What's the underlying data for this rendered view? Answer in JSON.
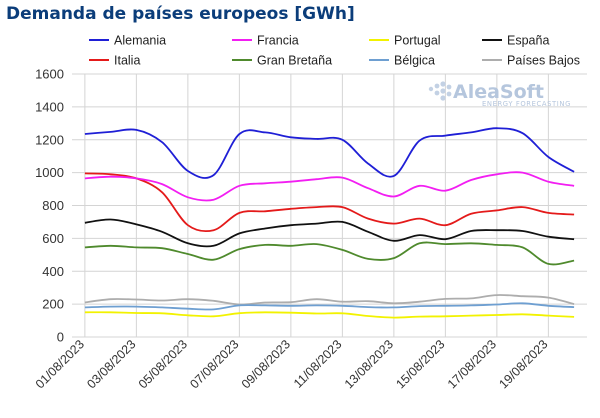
{
  "title": "Demanda de países europeos [GWh]",
  "logo": {
    "name": "AleaSoft",
    "tagline": "ENERGY FORECASTING"
  },
  "chart_data": {
    "type": "line",
    "title": "Demanda de países europeos [GWh]",
    "xlabel": "",
    "ylabel": "",
    "ylim": [
      0,
      1600
    ],
    "yticks": [
      0,
      200,
      400,
      600,
      800,
      1000,
      1200,
      1400,
      1600
    ],
    "grid": true,
    "legend_position": "top",
    "x": [
      "01/08/2023",
      "02/08/2023",
      "03/08/2023",
      "04/08/2023",
      "05/08/2023",
      "06/08/2023",
      "07/08/2023",
      "08/08/2023",
      "09/08/2023",
      "10/08/2023",
      "11/08/2023",
      "12/08/2023",
      "13/08/2023",
      "14/08/2023",
      "15/08/2023",
      "16/08/2023",
      "17/08/2023",
      "18/08/2023",
      "19/08/2023",
      "20/08/2023"
    ],
    "xtick_labels": [
      "01/08/2023",
      "03/08/2023",
      "05/08/2023",
      "07/08/2023",
      "09/08/2023",
      "11/08/2023",
      "13/08/2023",
      "15/08/2023",
      "17/08/2023",
      "19/08/2023"
    ],
    "series": [
      {
        "name": "Alemania",
        "color": "#1f1fd6",
        "values": [
          1235,
          1248,
          1260,
          1185,
          1010,
          985,
          1235,
          1245,
          1215,
          1205,
          1200,
          1055,
          980,
          1195,
          1225,
          1245,
          1270,
          1240,
          1095,
          1005
        ]
      },
      {
        "name": "Francia",
        "color": "#f21ef2",
        "values": [
          965,
          975,
          965,
          930,
          850,
          835,
          920,
          935,
          945,
          960,
          970,
          905,
          855,
          920,
          890,
          955,
          990,
          1000,
          945,
          920
        ]
      },
      {
        "name": "Portugal",
        "color": "#f2f200",
        "values": [
          150,
          150,
          146,
          144,
          132,
          126,
          145,
          150,
          148,
          143,
          144,
          128,
          118,
          124,
          126,
          130,
          134,
          138,
          130,
          122
        ]
      },
      {
        "name": "España",
        "color": "#111111",
        "values": [
          695,
          715,
          685,
          640,
          570,
          555,
          630,
          660,
          680,
          690,
          700,
          640,
          585,
          620,
          595,
          645,
          650,
          645,
          610,
          595
        ]
      },
      {
        "name": "Italia",
        "color": "#e41a1a",
        "values": [
          995,
          990,
          965,
          880,
          680,
          650,
          755,
          765,
          780,
          790,
          790,
          720,
          690,
          720,
          680,
          750,
          770,
          790,
          755,
          745
        ]
      },
      {
        "name": "Gran Bretaña",
        "color": "#4f8a2d",
        "values": [
          545,
          555,
          545,
          540,
          505,
          470,
          535,
          560,
          555,
          565,
          530,
          475,
          480,
          570,
          565,
          570,
          560,
          545,
          445,
          465
        ]
      },
      {
        "name": "Bélgica",
        "color": "#6e9fd1",
        "values": [
          180,
          185,
          185,
          180,
          172,
          168,
          192,
          192,
          190,
          192,
          190,
          182,
          180,
          188,
          190,
          192,
          198,
          205,
          190,
          182
        ]
      },
      {
        "name": "Países Bajos",
        "color": "#adadad",
        "values": [
          210,
          230,
          228,
          222,
          230,
          220,
          198,
          210,
          212,
          230,
          215,
          218,
          205,
          215,
          232,
          235,
          255,
          248,
          240,
          200
        ]
      }
    ]
  }
}
